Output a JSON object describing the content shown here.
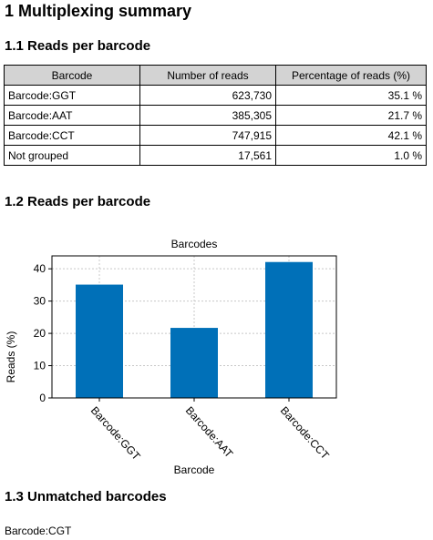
{
  "title": "1 Multiplexing summary",
  "section1": {
    "heading": "1.1 Reads per barcode",
    "columns": [
      "Barcode",
      "Number of reads",
      "Percentage of reads (%)"
    ],
    "rows": [
      [
        "Barcode:GGT",
        "623,730",
        "35.1 %"
      ],
      [
        "Barcode:AAT",
        "385,305",
        "21.7 %"
      ],
      [
        "Barcode:CCT",
        "747,915",
        "42.1 %"
      ],
      [
        "Not grouped",
        "17,561",
        "1.0 %"
      ]
    ]
  },
  "section2": {
    "heading": "1.2 Reads per barcode"
  },
  "chart_data": {
    "type": "bar",
    "title": "Barcodes",
    "xlabel": "Barcode",
    "ylabel": "Reads (%)",
    "categories": [
      "Barcode:GGT",
      "Barcode:AAT",
      "Barcode:CCT"
    ],
    "values": [
      35.1,
      21.7,
      42.1
    ],
    "ylim": [
      0,
      44
    ],
    "yticks": [
      0,
      10,
      20,
      30,
      40
    ],
    "grid": true,
    "bar_color": "#0070b8"
  },
  "section3": {
    "heading": "1.3 Unmatched barcodes",
    "items": [
      "Barcode:CGT"
    ]
  }
}
